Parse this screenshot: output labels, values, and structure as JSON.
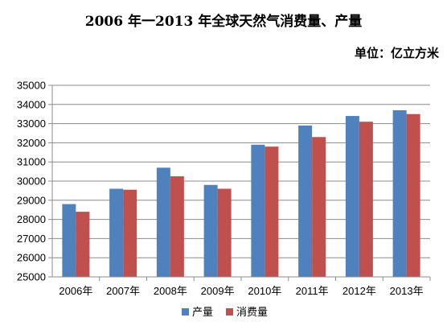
{
  "chart_data": {
    "type": "bar",
    "title": "2006 年一2013 年全球天然气消费量、产量",
    "unit_label": "单位：亿立方米",
    "categories": [
      "2006年",
      "2007年",
      "2008年",
      "2009年",
      "2010年",
      "2011年",
      "2012年",
      "2013年"
    ],
    "ylim": [
      25000,
      35000
    ],
    "yticks": [
      25000,
      26000,
      27000,
      28000,
      29000,
      30000,
      31000,
      32000,
      33000,
      34000,
      35000
    ],
    "grid": true,
    "legend": "bottom",
    "series": [
      {
        "name": "产量",
        "color": "#4f81bd",
        "values": [
          28800,
          29600,
          30700,
          29800,
          31900,
          32900,
          33400,
          33700
        ]
      },
      {
        "name": "消费量",
        "color": "#c0504d",
        "values": [
          28400,
          29550,
          30250,
          29600,
          31800,
          32300,
          33100,
          33500
        ]
      }
    ]
  }
}
